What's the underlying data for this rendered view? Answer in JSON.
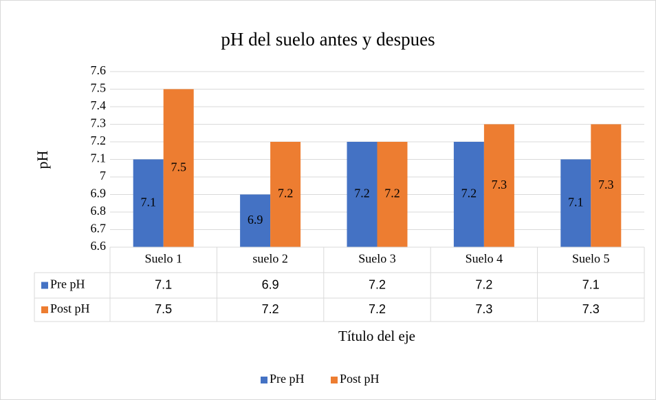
{
  "chart_data": {
    "type": "bar",
    "title": "pH del suelo antes y despues",
    "ylabel": "pH",
    "xlabel": "Título del eje",
    "categories": [
      "Suelo 1",
      "suelo 2",
      "Suelo 3",
      "Suelo 4",
      "Suelo 5"
    ],
    "series": [
      {
        "name": "Pre pH",
        "color": "#4472c4",
        "values": [
          7.1,
          6.9,
          7.2,
          7.2,
          7.1
        ]
      },
      {
        "name": "Post pH",
        "color": "#ed7d31",
        "values": [
          7.5,
          7.2,
          7.2,
          7.3,
          7.3
        ]
      }
    ],
    "ylim": [
      6.6,
      7.6
    ],
    "yticks": [
      6.6,
      6.7,
      6.8,
      6.9,
      7,
      7.1,
      7.2,
      7.3,
      7.4,
      7.5,
      7.6
    ],
    "grid": true,
    "legend": "bottom",
    "data_table": true
  }
}
